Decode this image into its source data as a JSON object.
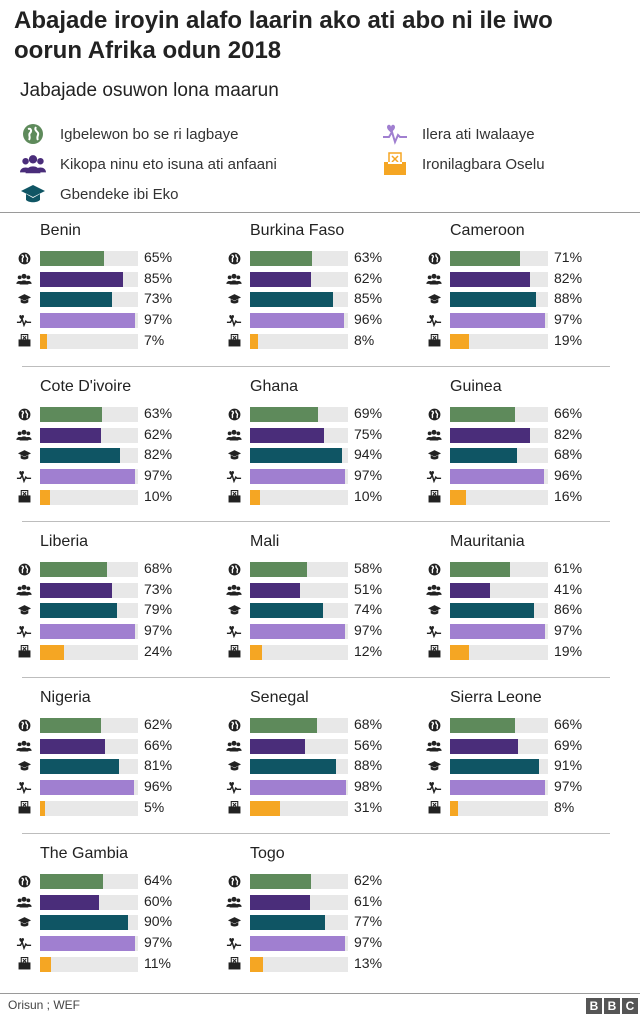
{
  "title": "Abajade iroyin alafo laarin ako ati abo ni ile iwo oorun Afrika odun 2018",
  "subtitle": "Jabajade osuwon lona maarun",
  "legend": [
    {
      "label": "Igbelewon bo se ri lagbaye",
      "icon": "globe-icon"
    },
    {
      "label": "Ilera ati Iwalaaye",
      "icon": "heart-pulse-icon"
    },
    {
      "label": "Kikopa ninu eto isuna ati anfaani",
      "icon": "people-icon"
    },
    {
      "label": "Ironilagbara Oselu",
      "icon": "ballot-box-icon"
    },
    {
      "label": "Gbendeke ibi Eko",
      "icon": "graduation-cap-icon"
    }
  ],
  "colors": {
    "global": "#5e8a5b",
    "economic": "#4a2d7a",
    "education": "#0f5564",
    "health": "#a07fd0",
    "political": "#f5a623",
    "track": "#e8e8e8"
  },
  "chart_data": {
    "type": "bar",
    "orientation": "horizontal",
    "title": "Abajade iroyin alafo laarin ako ati abo ni ile iwo oorun Afrika odun 2018",
    "subtitle": "Jabajade osuwon lona maarun",
    "unit": "%",
    "xlim": [
      0,
      100
    ],
    "metrics": [
      "global",
      "economic",
      "education",
      "health",
      "political"
    ],
    "countries": [
      {
        "name": "Benin",
        "values": [
          65,
          85,
          73,
          97,
          7
        ],
        "labels": [
          "65%",
          "85%",
          "73%",
          "97%",
          "7%"
        ]
      },
      {
        "name": "Burkina Faso",
        "values": [
          63,
          62,
          85,
          96,
          8
        ],
        "labels": [
          "63%",
          "62%",
          "85%",
          "96%",
          "8%"
        ]
      },
      {
        "name": "Cameroon",
        "values": [
          71,
          82,
          88,
          97,
          19
        ],
        "labels": [
          "71%",
          "82%",
          "88%",
          "97%",
          "19%"
        ]
      },
      {
        "name": "Cote D'ivoire",
        "values": [
          63,
          62,
          82,
          97,
          10
        ],
        "labels": [
          "63%",
          "62%",
          "82%",
          "97%",
          "10%"
        ]
      },
      {
        "name": "Ghana",
        "values": [
          69,
          75,
          94,
          97,
          10
        ],
        "labels": [
          "69%",
          "75%",
          "94%",
          "97%",
          "10%"
        ]
      },
      {
        "name": "Guinea",
        "values": [
          66,
          82,
          68,
          96,
          16
        ],
        "labels": [
          "66%",
          "82%",
          "68%",
          "96%",
          "16%"
        ]
      },
      {
        "name": "Liberia",
        "values": [
          68,
          73,
          79,
          97,
          24
        ],
        "labels": [
          "68%",
          "73%",
          "79%",
          "97%",
          "24%"
        ]
      },
      {
        "name": "Mali",
        "values": [
          58,
          51,
          74,
          97,
          12
        ],
        "labels": [
          "58%",
          "51%",
          "74%",
          "97%",
          "12%"
        ]
      },
      {
        "name": "Mauritania",
        "values": [
          61,
          41,
          86,
          97,
          19
        ],
        "labels": [
          "61%",
          "41%",
          "86%",
          "97%",
          "19%"
        ]
      },
      {
        "name": "Nigeria",
        "values": [
          62,
          66,
          81,
          96,
          5
        ],
        "labels": [
          "62%",
          "66%",
          "81%",
          "96%",
          "5%"
        ]
      },
      {
        "name": "Senegal",
        "values": [
          68,
          56,
          88,
          98,
          31
        ],
        "labels": [
          "68%",
          "56%",
          "88%",
          "98%",
          "31%"
        ]
      },
      {
        "name": "Sierra Leone",
        "values": [
          66,
          69,
          91,
          97,
          8
        ],
        "labels": [
          "66%",
          "69%",
          "91%",
          "97%",
          "8%"
        ]
      },
      {
        "name": "The Gambia",
        "values": [
          64,
          60,
          90,
          97,
          11
        ],
        "labels": [
          "64%",
          "60%",
          "90%",
          "97%",
          "11%"
        ]
      },
      {
        "name": "Togo",
        "values": [
          62,
          61,
          77,
          97,
          13
        ],
        "labels": [
          "62%",
          "61%",
          "77%",
          "97%",
          "13%"
        ]
      }
    ]
  },
  "footer": {
    "source": "Orisun ; WEF",
    "brand_letters": [
      "B",
      "B",
      "C"
    ]
  }
}
